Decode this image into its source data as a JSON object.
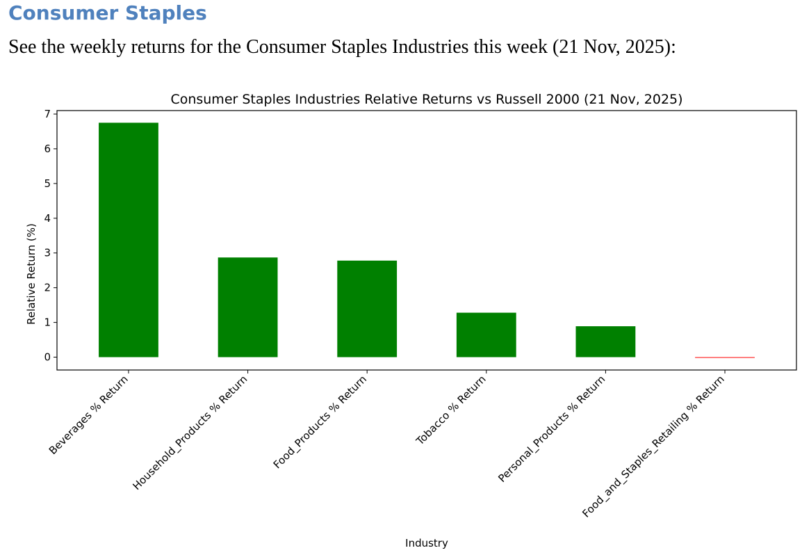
{
  "page": {
    "heading": "Consumer Staples",
    "intro": "See the weekly returns for the Consumer Staples Industries this week (21 Nov, 2025):",
    "heading_color": "#4f81bd"
  },
  "chart_data": {
    "type": "bar",
    "title": "Consumer Staples Industries Relative Returns vs Russell 2000 (21 Nov, 2025)",
    "xlabel": "Industry",
    "ylabel": "Relative Return (%)",
    "categories": [
      "Beverages % Return",
      "Household_Products % Return",
      "Food_Products % Return",
      "Tobacco % Return",
      "Personal_Products % Return",
      "Food_and_Staples_Retailing % Return"
    ],
    "values": [
      6.75,
      2.87,
      2.78,
      1.28,
      0.89,
      -0.02
    ],
    "colors": [
      "#008000",
      "#008000",
      "#008000",
      "#008000",
      "#008000",
      "#ff0000"
    ],
    "ylim": [
      -0.37,
      7.1
    ],
    "yticks": [
      0,
      1,
      2,
      3,
      4,
      5,
      6,
      7
    ],
    "grid": false,
    "legend": "none"
  }
}
